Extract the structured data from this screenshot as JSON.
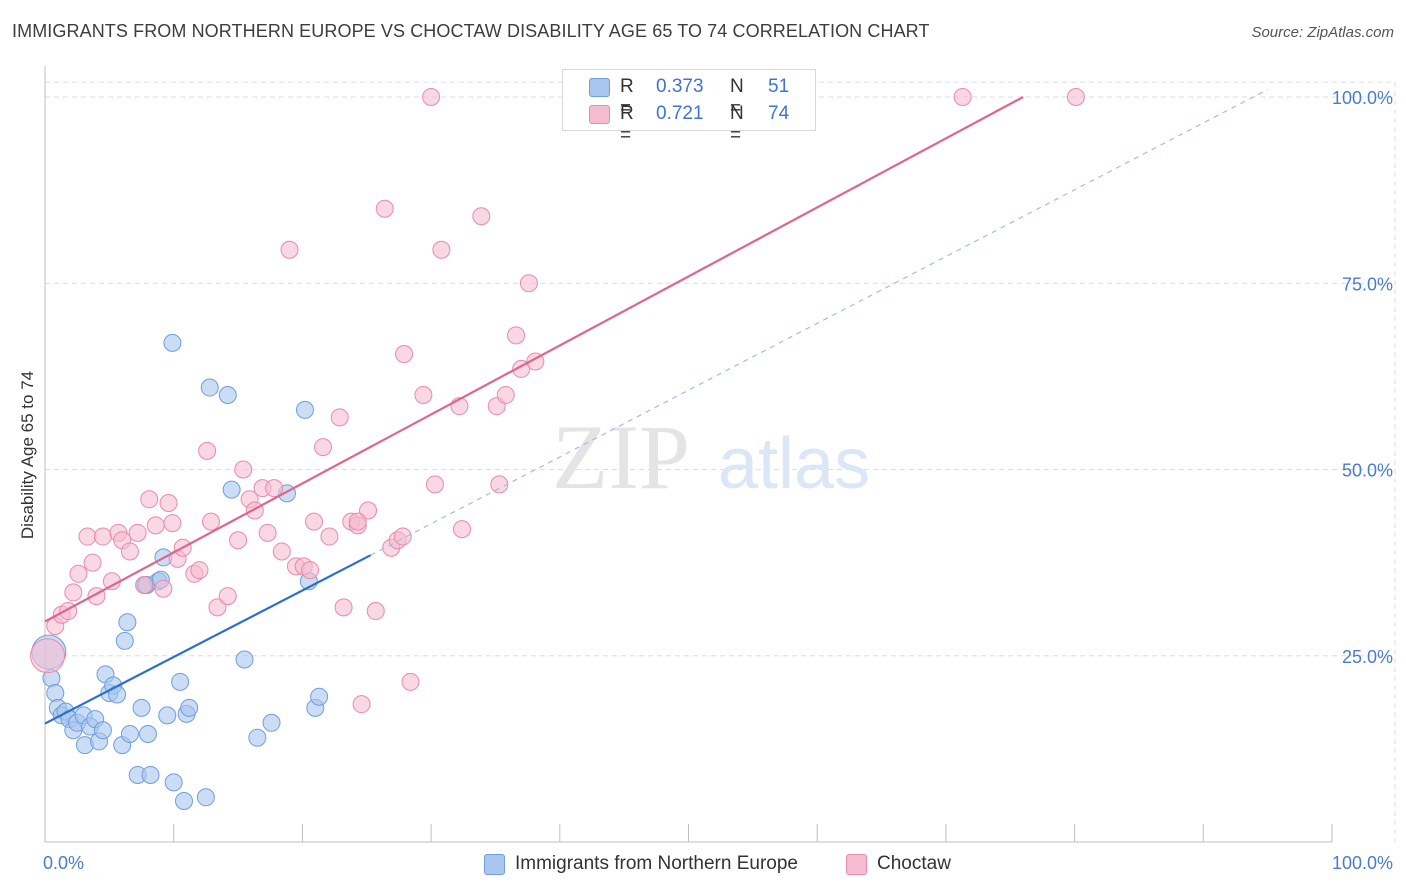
{
  "title": "IMMIGRANTS FROM NORTHERN EUROPE VS CHOCTAW DISABILITY AGE 65 TO 74 CORRELATION CHART",
  "source": "Source: ZipAtlas.com",
  "watermark": {
    "zip": "ZIP",
    "atlas": "atlas"
  },
  "legend": {
    "r_label": "R =",
    "n_label": "N =",
    "rows": [
      {
        "r": "0.373",
        "n": "51"
      },
      {
        "r": "0.721",
        "n": "74"
      }
    ]
  },
  "colors": {
    "blue_fill": "#a9c6ee",
    "blue_stroke": "#6f9ede",
    "blue_line": "#2b6fd1",
    "pink_fill": "#f5bcd0",
    "pink_stroke": "#e98bab",
    "pink_line": "#e0658e",
    "tick_text": "#4a7bd0",
    "grid": "#dedede"
  },
  "chart_data": {
    "type": "scatter",
    "title": "IMMIGRANTS FROM NORTHERN EUROPE VS CHOCTAW DISABILITY AGE 65 TO 74 CORRELATION CHART",
    "xlabel": "",
    "ylabel": "Disability Age 65 to 74",
    "xlim": [
      0,
      100
    ],
    "ylim": [
      0,
      102
    ],
    "x_tick_labels": [
      "0.0%",
      "100.0%"
    ],
    "y_ticks": [
      25,
      50,
      75,
      100
    ],
    "y_tick_labels": [
      "25.0%",
      "50.0%",
      "75.0%",
      "100.0%"
    ],
    "grid": true,
    "legend_position": "top-center",
    "series": [
      {
        "name": "Immigrants from Northern Europe",
        "color": "blue",
        "R": 0.373,
        "N": 51,
        "trend": {
          "x_start": 0,
          "y_start": 15.9,
          "x_end": 25.3,
          "y_end": 38.5
        },
        "trend_extension": {
          "x_start": 25.3,
          "y_start": 38.5,
          "x_end": 95.0,
          "y_end": 101.0
        },
        "points": [
          [
            0.3,
            25.5
          ],
          [
            0.5,
            22.0
          ],
          [
            0.8,
            20.0
          ],
          [
            1.0,
            18.0
          ],
          [
            1.3,
            17.0
          ],
          [
            1.6,
            17.5
          ],
          [
            1.9,
            16.5
          ],
          [
            2.2,
            15.0
          ],
          [
            2.5,
            16.0
          ],
          [
            3.0,
            17.0
          ],
          [
            3.1,
            13.0
          ],
          [
            3.5,
            15.5
          ],
          [
            3.9,
            16.5
          ],
          [
            4.2,
            13.5
          ],
          [
            4.5,
            15.0
          ],
          [
            4.7,
            22.5
          ],
          [
            5.0,
            20.0
          ],
          [
            5.3,
            21.0
          ],
          [
            5.6,
            19.8
          ],
          [
            6.0,
            13.0
          ],
          [
            6.2,
            27.0
          ],
          [
            6.4,
            29.5
          ],
          [
            6.6,
            14.5
          ],
          [
            7.2,
            9.0
          ],
          [
            7.5,
            18.0
          ],
          [
            7.8,
            34.5
          ],
          [
            7.9,
            34.5
          ],
          [
            8.0,
            14.5
          ],
          [
            8.2,
            9.0
          ],
          [
            8.8,
            35.0
          ],
          [
            9.0,
            35.2
          ],
          [
            9.2,
            38.2
          ],
          [
            9.5,
            17.0
          ],
          [
            9.9,
            67.0
          ],
          [
            10.0,
            8.0
          ],
          [
            10.5,
            21.5
          ],
          [
            10.8,
            5.5
          ],
          [
            11.0,
            17.2
          ],
          [
            11.2,
            18.0
          ],
          [
            12.5,
            6.0
          ],
          [
            12.8,
            61.0
          ],
          [
            14.2,
            60.0
          ],
          [
            14.5,
            47.3
          ],
          [
            15.5,
            24.5
          ],
          [
            16.5,
            14.0
          ],
          [
            17.6,
            16.0
          ],
          [
            18.8,
            46.8
          ],
          [
            20.2,
            58.0
          ],
          [
            20.5,
            35.0
          ],
          [
            21.0,
            18.0
          ],
          [
            21.3,
            19.5
          ]
        ]
      },
      {
        "name": "Choctaw",
        "color": "pink",
        "R": 0.721,
        "N": 74,
        "trend": {
          "x_start": 0,
          "y_start": 29.6,
          "x_end": 76.0,
          "y_end": 100.0
        },
        "points": [
          [
            0.2,
            25.0
          ],
          [
            0.8,
            29.0
          ],
          [
            1.3,
            30.5
          ],
          [
            1.8,
            31.0
          ],
          [
            2.2,
            33.5
          ],
          [
            2.6,
            36.0
          ],
          [
            3.3,
            41.0
          ],
          [
            3.7,
            37.5
          ],
          [
            4.0,
            33.0
          ],
          [
            4.5,
            41.0
          ],
          [
            5.2,
            35.0
          ],
          [
            5.7,
            41.5
          ],
          [
            6.0,
            40.5
          ],
          [
            6.6,
            39.0
          ],
          [
            7.2,
            41.5
          ],
          [
            7.7,
            34.5
          ],
          [
            8.1,
            46.0
          ],
          [
            8.6,
            42.5
          ],
          [
            9.2,
            34.0
          ],
          [
            9.6,
            45.5
          ],
          [
            9.9,
            42.8
          ],
          [
            10.3,
            38.0
          ],
          [
            10.7,
            39.5
          ],
          [
            11.6,
            36.0
          ],
          [
            12.0,
            36.5
          ],
          [
            12.6,
            52.5
          ],
          [
            12.9,
            43.0
          ],
          [
            13.4,
            31.5
          ],
          [
            14.2,
            33.0
          ],
          [
            15.0,
            40.5
          ],
          [
            15.4,
            50.0
          ],
          [
            15.9,
            46.0
          ],
          [
            16.3,
            44.5
          ],
          [
            16.9,
            47.5
          ],
          [
            17.3,
            41.5
          ],
          [
            17.8,
            47.5
          ],
          [
            18.4,
            39.0
          ],
          [
            19.0,
            79.5
          ],
          [
            19.5,
            37.0
          ],
          [
            20.1,
            37.0
          ],
          [
            20.6,
            36.5
          ],
          [
            20.9,
            43.0
          ],
          [
            21.6,
            53.0
          ],
          [
            22.1,
            41.0
          ],
          [
            22.9,
            57.0
          ],
          [
            23.2,
            31.5
          ],
          [
            23.8,
            43.0
          ],
          [
            24.3,
            42.5
          ],
          [
            25.1,
            44.5
          ],
          [
            25.7,
            31.0
          ],
          [
            26.4,
            85.0
          ],
          [
            26.9,
            39.5
          ],
          [
            27.4,
            40.5
          ],
          [
            27.9,
            65.5
          ],
          [
            28.4,
            21.5
          ],
          [
            29.4,
            60.0
          ],
          [
            30.0,
            100.0
          ],
          [
            30.3,
            48.0
          ],
          [
            30.8,
            79.5
          ],
          [
            32.2,
            58.5
          ],
          [
            32.4,
            42.0
          ],
          [
            33.9,
            84.0
          ],
          [
            35.1,
            58.5
          ],
          [
            35.3,
            48.0
          ],
          [
            35.8,
            60.0
          ],
          [
            36.6,
            68.0
          ],
          [
            37.0,
            63.5
          ],
          [
            37.6,
            75.0
          ],
          [
            38.1,
            64.5
          ],
          [
            71.3,
            100.0
          ],
          [
            80.1,
            100.0
          ],
          [
            24.3,
            43.0
          ],
          [
            24.6,
            18.5
          ],
          [
            27.8,
            41.0
          ]
        ]
      }
    ]
  },
  "bottom_legend": [
    "Immigrants from Northern Europe",
    "Choctaw"
  ]
}
